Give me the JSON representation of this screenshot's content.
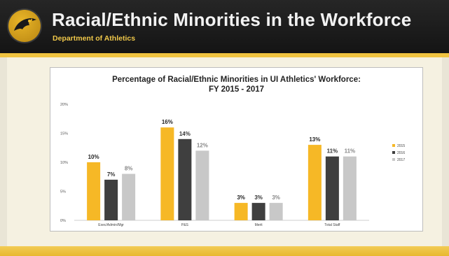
{
  "header": {
    "title": "Racial/Ethnic Minorities in the Workforce",
    "subtitle": "Department of Athletics",
    "logo_icon": "hawk-logo-icon"
  },
  "colors": {
    "header_bg": "#1e1e1e",
    "accent_gold": "#f0c340",
    "series": [
      "#f6b826",
      "#3f3f3f",
      "#c8c8c8"
    ]
  },
  "chart_data": {
    "type": "bar",
    "title_line1": "Percentage of Racial/Ethnic Minorities in UI Athletics' Workforce:",
    "title_line2": "FY 2015 - 2017",
    "categories": [
      "Exec/Admin/Mgr",
      "P&S",
      "Merit",
      "Total Staff"
    ],
    "series": [
      {
        "name": "2015",
        "values": [
          10,
          16,
          3,
          13
        ]
      },
      {
        "name": "2016",
        "values": [
          7,
          14,
          3,
          11
        ]
      },
      {
        "name": "2017",
        "values": [
          8,
          12,
          3,
          11
        ]
      }
    ],
    "data_labels": [
      [
        "10%",
        "7%",
        "8%"
      ],
      [
        "16%",
        "14%",
        "12%"
      ],
      [
        "3%",
        "3%",
        "3%"
      ],
      [
        "13%",
        "11%",
        "11%"
      ]
    ],
    "ylim": [
      0,
      20
    ],
    "yticks": [
      0,
      5,
      10,
      15,
      20
    ],
    "ytick_labels": [
      "0%",
      "5%",
      "10%",
      "15%",
      "20%"
    ],
    "legend_position": "right",
    "grid": false
  }
}
